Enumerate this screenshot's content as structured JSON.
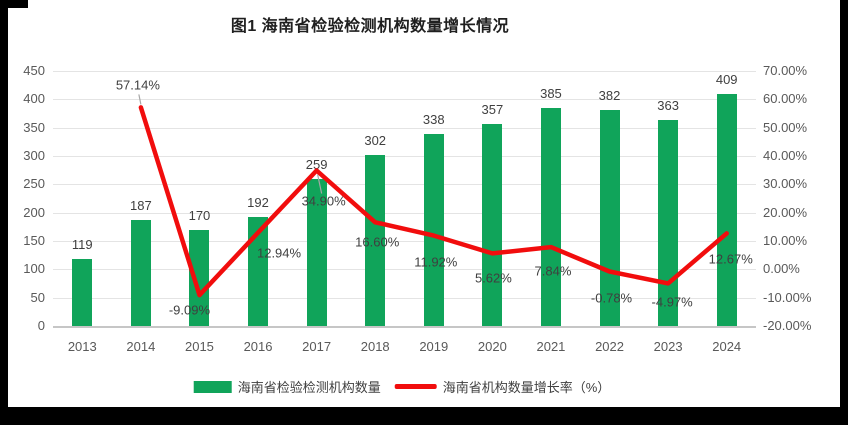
{
  "chart_data": {
    "type": "bar+line",
    "title": "图1 海南省检验检测机构数量增长情况",
    "categories": [
      "2013",
      "2014",
      "2015",
      "2016",
      "2017",
      "2018",
      "2019",
      "2020",
      "2021",
      "2022",
      "2023",
      "2024"
    ],
    "series": [
      {
        "name": "海南省检验检测机构数量",
        "type": "bar",
        "axis": "left",
        "color": "#10a45a",
        "values": [
          119,
          187,
          170,
          192,
          259,
          302,
          338,
          357,
          385,
          382,
          363,
          409
        ],
        "value_labels": [
          "119",
          "187",
          "170",
          "192",
          "259",
          "302",
          "338",
          "357",
          "385",
          "382",
          "363",
          "409"
        ]
      },
      {
        "name": "海南省机构数量增长率（%）",
        "type": "line",
        "axis": "right",
        "color": "#f10d0d",
        "values": [
          null,
          57.14,
          -9.09,
          12.94,
          34.9,
          16.6,
          11.92,
          5.62,
          7.84,
          -0.78,
          -4.97,
          12.67
        ],
        "value_labels": [
          null,
          "57.14%",
          "-9.09%",
          "12.94%",
          "34.90%",
          "16.60%",
          "11.92%",
          "5.62%",
          "7.84%",
          "-0.78%",
          "-4.97%",
          "12.67%"
        ],
        "label_offsets": [
          null,
          [
            -3,
            -22
          ],
          [
            -10,
            15
          ],
          [
            21,
            20
          ],
          [
            7,
            31
          ],
          [
            2,
            20
          ],
          [
            2,
            26
          ],
          [
            1,
            25
          ],
          [
            2,
            24
          ],
          [
            2,
            26
          ],
          [
            4,
            19
          ],
          [
            4,
            26
          ]
        ],
        "leader_line_indices": [
          1,
          4
        ]
      }
    ],
    "left_axis": {
      "min": 0,
      "max": 450,
      "step": 50,
      "tick_labels": [
        "450",
        "400",
        "350",
        "300",
        "250",
        "200",
        "150",
        "100",
        "50",
        "0"
      ]
    },
    "right_axis": {
      "min": -20,
      "max": 70,
      "step": 10,
      "tick_labels": [
        "70.00%",
        "60.00%",
        "50.00%",
        "40.00%",
        "30.00%",
        "20.00%",
        "10.00%",
        "0.00%",
        "-10.00%",
        "-20.00%"
      ]
    },
    "grid": true,
    "legend_position": "bottom"
  },
  "colors": {
    "bar_green": "#10a45a",
    "line_red": "#f10d0d",
    "gridline": "#e4e4e4",
    "axis_text": "#595959",
    "label_text": "#3f3f3f",
    "frame_black": "#000000"
  }
}
